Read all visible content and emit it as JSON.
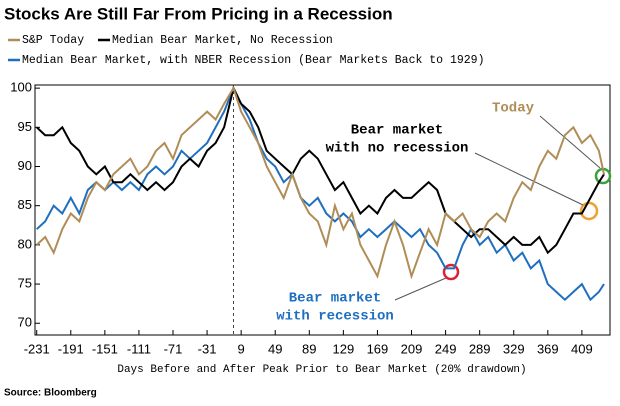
{
  "chart_data": {
    "type": "line",
    "title": "Stocks Are Still Far From Pricing in a Recession",
    "legend_note": "(Bear Markets Back to 1929)",
    "xlabel": "Days Before and After Peak Prior to Bear Market (20% drawdown)",
    "source": "Source: Bloomberg",
    "x": [
      -231,
      -221,
      -211,
      -201,
      -191,
      -181,
      -171,
      -161,
      -151,
      -141,
      -131,
      -121,
      -111,
      -101,
      -91,
      -81,
      -71,
      -61,
      -51,
      -41,
      -31,
      -21,
      -11,
      0,
      9,
      19,
      29,
      39,
      49,
      59,
      69,
      79,
      89,
      99,
      109,
      119,
      129,
      139,
      149,
      159,
      169,
      179,
      189,
      199,
      209,
      219,
      229,
      239,
      249,
      259,
      269,
      279,
      289,
      299,
      309,
      319,
      329,
      339,
      349,
      359,
      369,
      379,
      389,
      399,
      409,
      419,
      429,
      435
    ],
    "series": [
      {
        "name": "S&P Today",
        "color": "#b08d57",
        "values": [
          80,
          81,
          79,
          82,
          84,
          83,
          86,
          88,
          87,
          89,
          90,
          91,
          89,
          90,
          92,
          93,
          91,
          94,
          95,
          96,
          97,
          96,
          98,
          100,
          97,
          95,
          93,
          90,
          88,
          86,
          89,
          86,
          84,
          83,
          80,
          85,
          82,
          84,
          80,
          78,
          76,
          80,
          83,
          80,
          76,
          79,
          82,
          80,
          84,
          83,
          84,
          82,
          81,
          83,
          84,
          83,
          86,
          88,
          87,
          90,
          92,
          91,
          94,
          95,
          93,
          94,
          92,
          89
        ]
      },
      {
        "name": "Median Bear Market, No Recession",
        "color": "#000000",
        "values": [
          95,
          94,
          94,
          95,
          93,
          92,
          90,
          89,
          90,
          88,
          88,
          89,
          88,
          87,
          88,
          87,
          88,
          90,
          91,
          90,
          92,
          93,
          95,
          100,
          98,
          97,
          95,
          92,
          91,
          90,
          89,
          91,
          92,
          91,
          89,
          87,
          88,
          86,
          84,
          85,
          84,
          86,
          87,
          86,
          86,
          87,
          88,
          87,
          84,
          83,
          82,
          81,
          82,
          82,
          81,
          80,
          81,
          80,
          80,
          81,
          79,
          80,
          82,
          84,
          84,
          86,
          88,
          89
        ]
      },
      {
        "name": "Median Bear Market, with NBER Recession",
        "color": "#1f6fc0",
        "values": [
          82,
          83,
          85,
          84,
          86,
          84,
          87,
          88,
          87,
          88,
          87,
          88,
          87,
          89,
          90,
          89,
          90,
          92,
          91,
          92,
          93,
          95,
          97,
          100,
          98,
          96,
          93,
          91,
          90,
          88,
          89,
          86,
          85,
          86,
          84,
          83,
          84,
          83,
          81,
          82,
          81,
          82,
          83,
          82,
          81,
          82,
          80,
          79,
          77,
          77,
          80,
          82,
          80,
          81,
          79,
          80,
          78,
          79,
          77,
          78,
          75,
          74,
          73,
          74,
          75,
          73,
          74,
          75
        ]
      }
    ],
    "annotations": [
      {
        "lines": [
          "Today"
        ],
        "color": "#b08d57"
      },
      {
        "lines": [
          "Bear market",
          "with no recession"
        ],
        "color": "#000000"
      },
      {
        "lines": [
          "Bear market",
          "with recession"
        ],
        "color": "#1f6fc0"
      }
    ],
    "xlim": [
      -233,
      442
    ],
    "ylim": [
      68.5,
      100.4
    ],
    "xticks": [
      -231,
      -191,
      -151,
      -111,
      -71,
      -31,
      9,
      49,
      89,
      129,
      169,
      209,
      249,
      289,
      329,
      369,
      409
    ],
    "yticks": [
      70,
      75,
      80,
      85,
      90,
      95,
      100
    ],
    "marker_line_x": 0
  }
}
